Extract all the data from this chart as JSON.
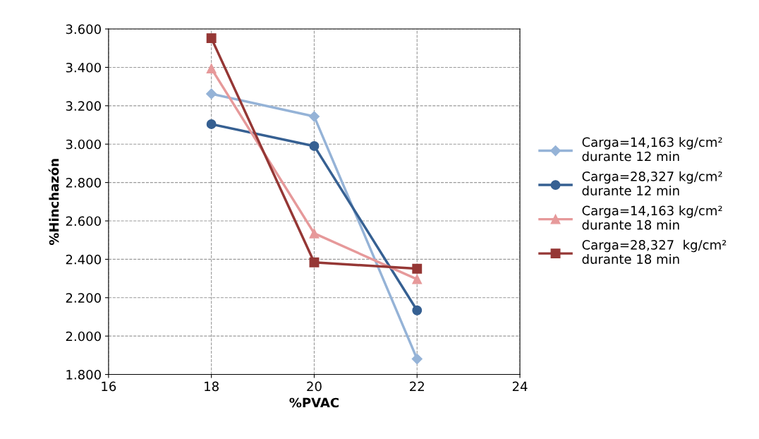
{
  "chart_data": {
    "type": "line",
    "xlabel": "%PVAC",
    "ylabel": "%Hinchazón",
    "x": [
      18,
      20,
      22
    ],
    "series": [
      {
        "name": "Carga=14,163 kg/cm²\ndurante 12 min",
        "color": "#95b3d7",
        "marker": "diamond",
        "values": [
          3.262,
          3.144,
          1.881
        ]
      },
      {
        "name": "Carga=28,327 kg/cm²\ndurante 12 min",
        "color": "#366092",
        "marker": "circle",
        "values": [
          3.104,
          2.99,
          2.134
        ]
      },
      {
        "name": "Carga=14,163 kg/cm²\ndurante 18 min",
        "color": "#e6999a",
        "marker": "triangle",
        "values": [
          3.394,
          2.535,
          2.296
        ]
      },
      {
        "name": "Carga=28,327  kg/cm²\ndurante 18 min",
        "color": "#953735",
        "marker": "square",
        "values": [
          3.552,
          2.384,
          2.351
        ]
      }
    ],
    "xlim": [
      16,
      24
    ],
    "xticks": [
      16,
      18,
      20,
      22,
      24
    ],
    "ylim": [
      1.8,
      3.6
    ],
    "yticks": [
      {
        "value": 1.8,
        "label": "1.800"
      },
      {
        "value": 2.0,
        "label": "2.000"
      },
      {
        "value": 2.2,
        "label": "2.200"
      },
      {
        "value": 2.4,
        "label": "2.400"
      },
      {
        "value": 2.6,
        "label": "2.600"
      },
      {
        "value": 2.8,
        "label": "2.800"
      },
      {
        "value": 3.0,
        "label": "3.000"
      },
      {
        "value": 3.2,
        "label": "3.200"
      },
      {
        "value": 3.4,
        "label": "3.400"
      },
      {
        "value": 3.6,
        "label": "3.600"
      }
    ],
    "grid": true,
    "legend": "right",
    "line_style": "solid"
  }
}
